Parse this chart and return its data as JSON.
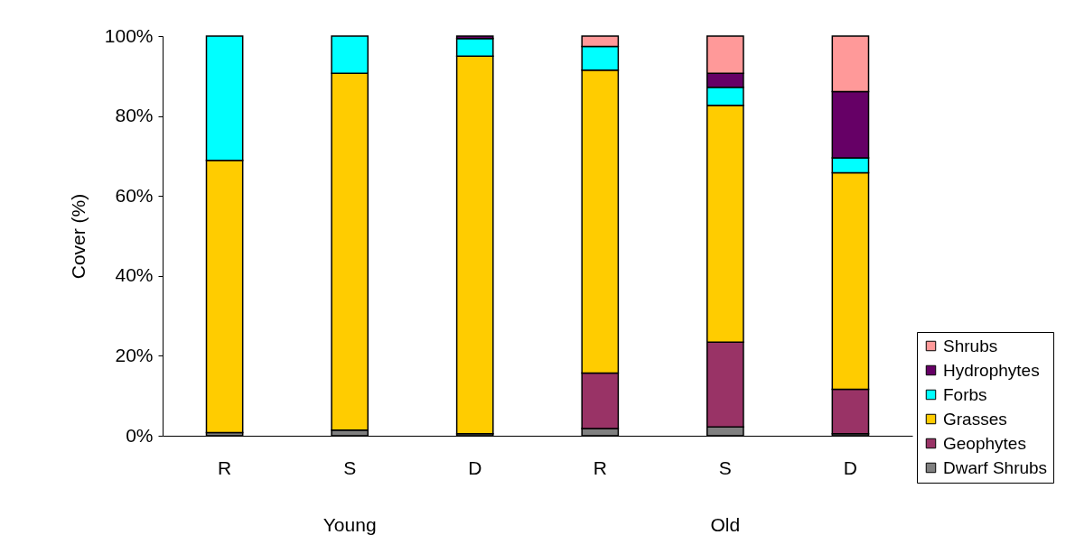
{
  "chart_data": {
    "type": "bar",
    "stacked": true,
    "ylabel": "Cover (%)",
    "categories": [
      "R",
      "S",
      "D",
      "R",
      "S",
      "D"
    ],
    "annotations": [
      "Young",
      "Old"
    ],
    "series": [
      {
        "name": "Dwarf Shrubs",
        "color": "#808080",
        "values": [
          0.8,
          1.4,
          0.5,
          1.8,
          2.2,
          0.5
        ]
      },
      {
        "name": "Geophytes",
        "color": "#993366",
        "values": [
          0,
          0,
          0,
          13.9,
          21.2,
          11.1
        ]
      },
      {
        "name": "Grasses",
        "color": "#ffcc00",
        "values": [
          68.1,
          89.3,
          94.5,
          75.8,
          59.3,
          54.2
        ]
      },
      {
        "name": "Forbs",
        "color": "#00ffff",
        "values": [
          31.1,
          9.3,
          4.4,
          5.9,
          4.5,
          3.7
        ]
      },
      {
        "name": "Hydrophytes",
        "color": "#660066",
        "values": [
          0,
          0,
          0.6,
          0,
          3.5,
          16.6
        ]
      },
      {
        "name": "Shrubs",
        "color": "#ff9999",
        "values": [
          0,
          0,
          0,
          2.6,
          9.3,
          13.9
        ]
      }
    ],
    "ylim": [
      0,
      100
    ],
    "yticks": [
      {
        "value": 0,
        "label": "0%"
      },
      {
        "value": 20,
        "label": "20%"
      },
      {
        "value": 40,
        "label": "40%"
      },
      {
        "value": 60,
        "label": "60%"
      },
      {
        "value": 80,
        "label": "80%"
      },
      {
        "value": 100,
        "label": "100%"
      }
    ],
    "grid": false,
    "legend": "bottom right"
  }
}
